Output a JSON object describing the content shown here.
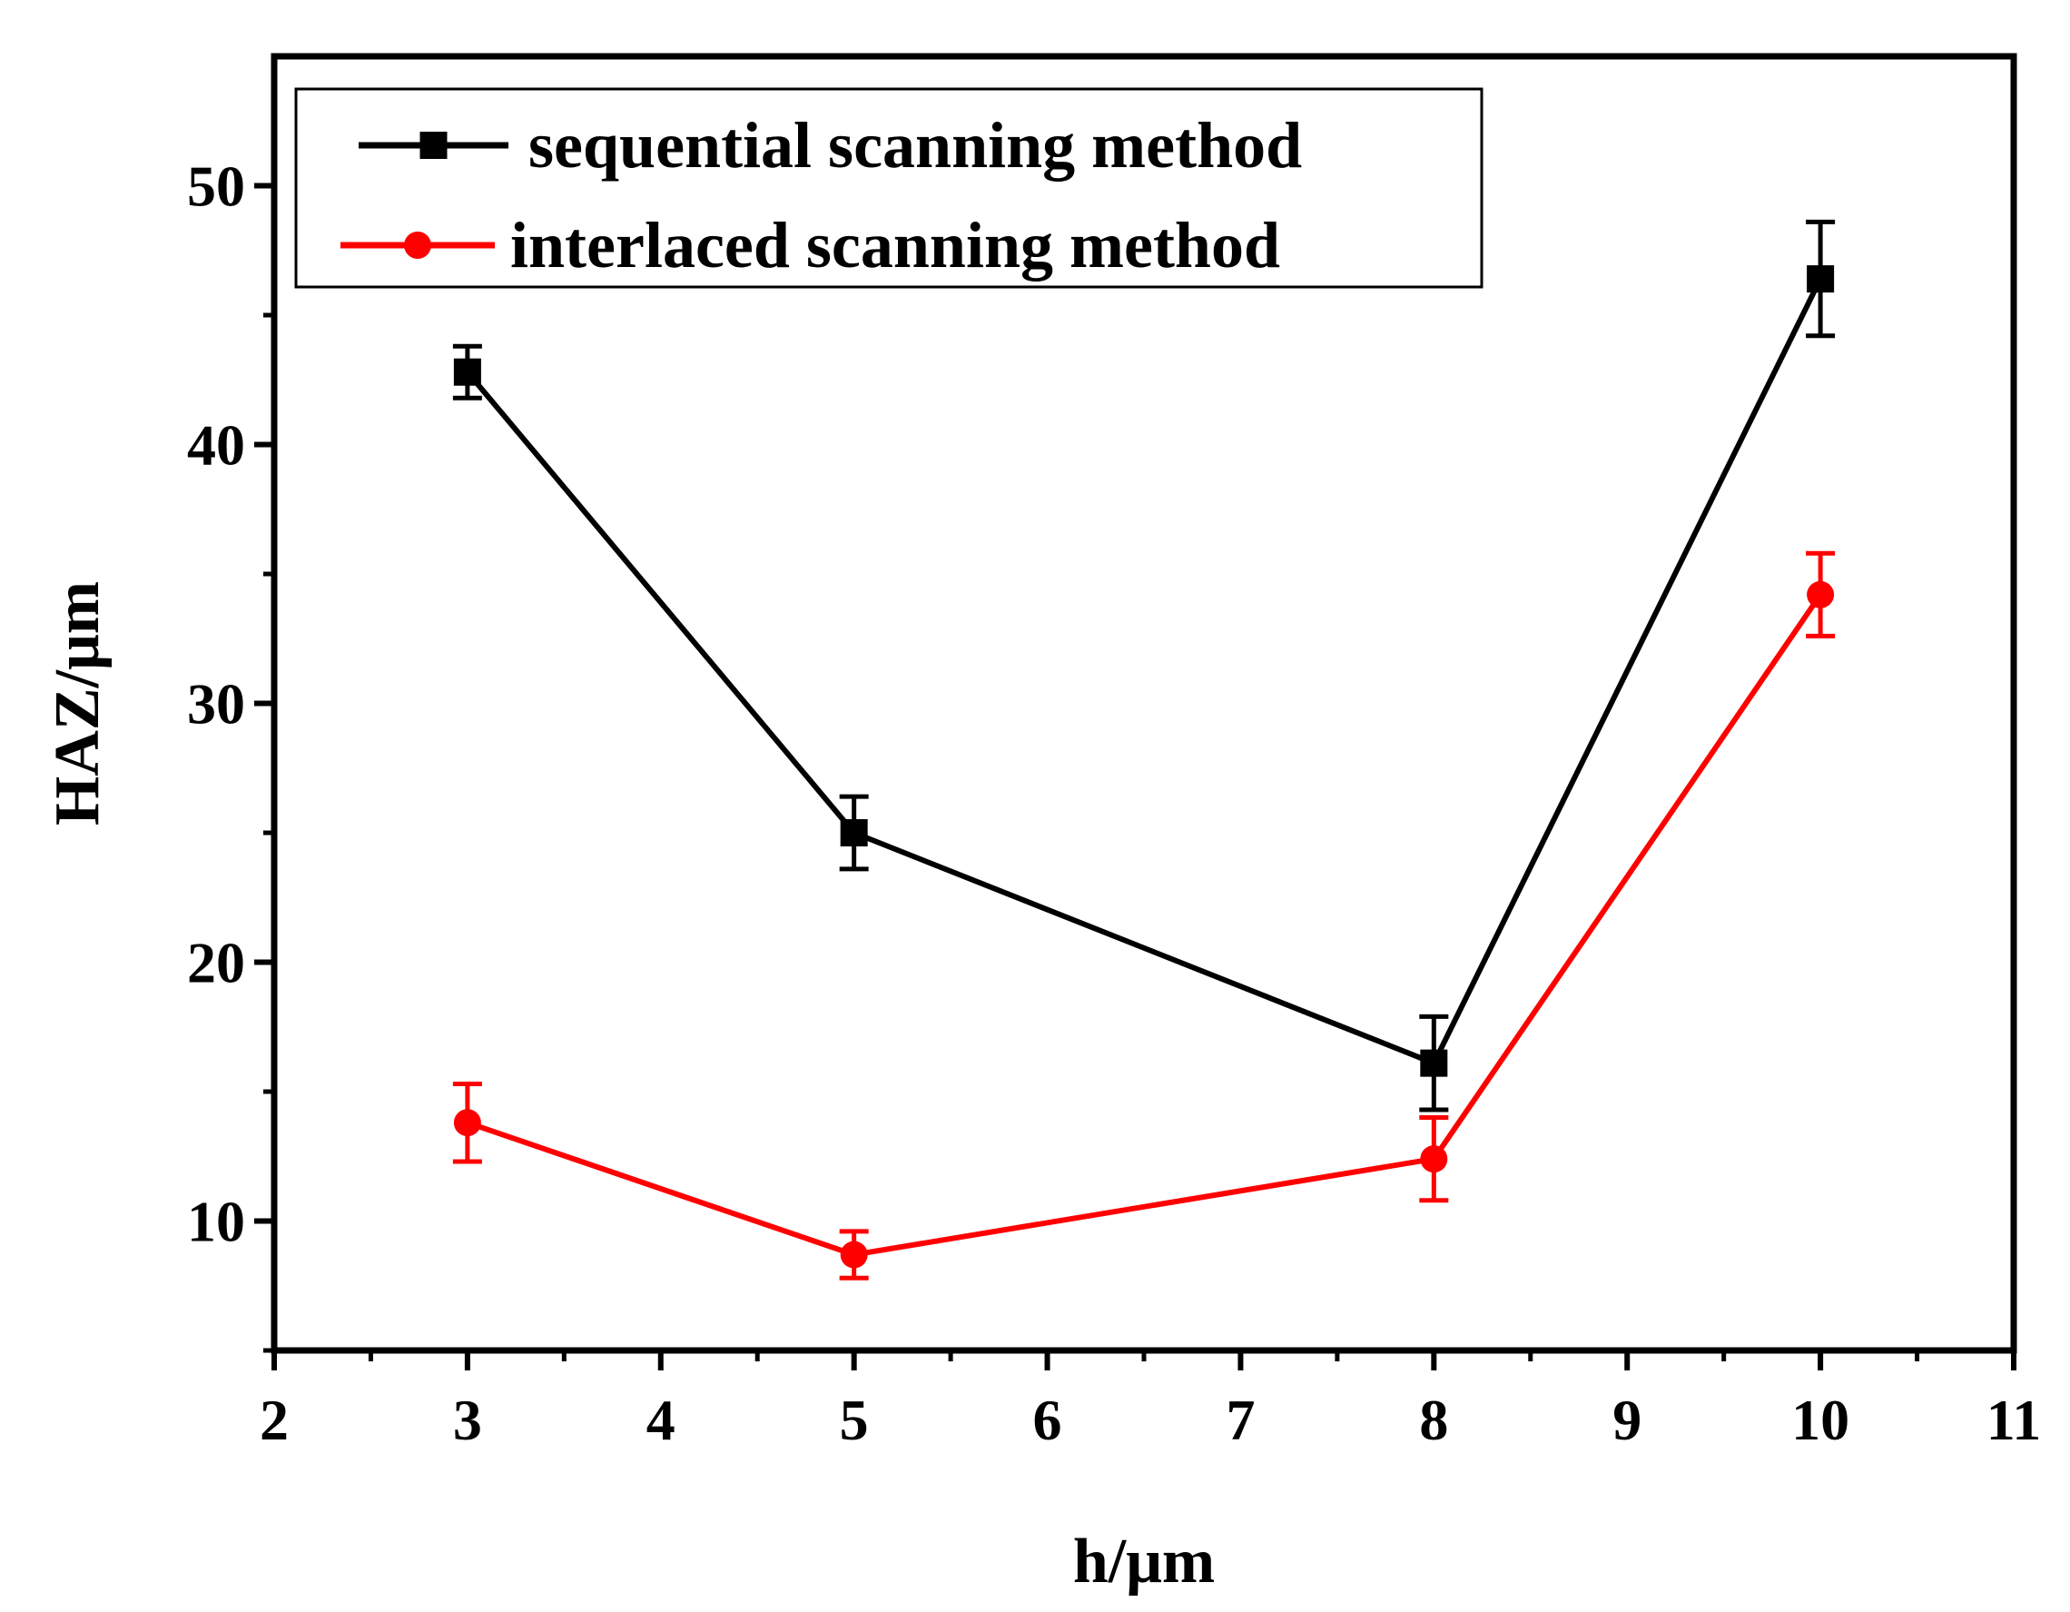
{
  "chart_data": {
    "type": "line",
    "title": "",
    "xlabel": "h/μm",
    "ylabel": "HAZ/μm",
    "xlim": [
      2,
      11
    ],
    "ylim": [
      5,
      55
    ],
    "xticks": [
      2,
      3,
      4,
      5,
      6,
      7,
      8,
      9,
      10,
      11
    ],
    "yticks": [
      10,
      20,
      30,
      40,
      50
    ],
    "grid": false,
    "legend_position": "top-left",
    "series": [
      {
        "name": "sequential scanning method",
        "color": "#000000",
        "marker": "square",
        "x": [
          3,
          5,
          8,
          10
        ],
        "y": [
          42.8,
          25.0,
          16.1,
          46.4
        ],
        "error": [
          1.0,
          1.4,
          1.8,
          2.2
        ]
      },
      {
        "name": "interlaced scanning method",
        "color": "#ff0000",
        "marker": "circle",
        "x": [
          3,
          5,
          8,
          10
        ],
        "y": [
          13.8,
          8.7,
          12.4,
          34.2
        ],
        "error": [
          1.5,
          0.9,
          1.6,
          1.6
        ]
      }
    ]
  }
}
